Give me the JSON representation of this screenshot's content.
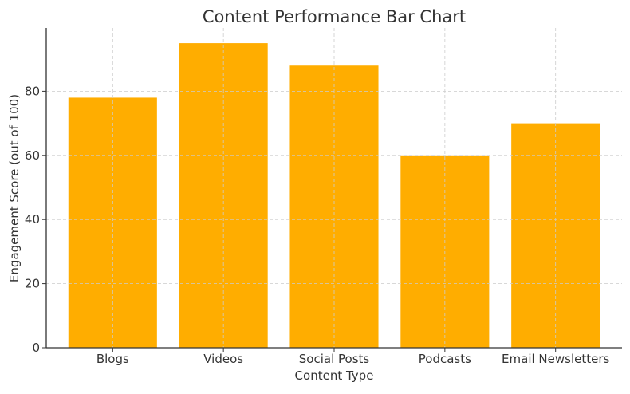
{
  "chart_data": {
    "type": "bar",
    "title": "Content Performance Bar Chart",
    "xlabel": "Content Type",
    "ylabel": "Engagement Score (out of 100)",
    "categories": [
      "Blogs",
      "Videos",
      "Social Posts",
      "Podcasts",
      "Email Newsletters"
    ],
    "values": [
      78,
      95,
      88,
      60,
      70
    ],
    "ylim": [
      0,
      99.75
    ],
    "yticks": [
      0,
      20,
      40,
      60,
      80
    ],
    "grid": true,
    "bar_color": "#FFAD00"
  }
}
